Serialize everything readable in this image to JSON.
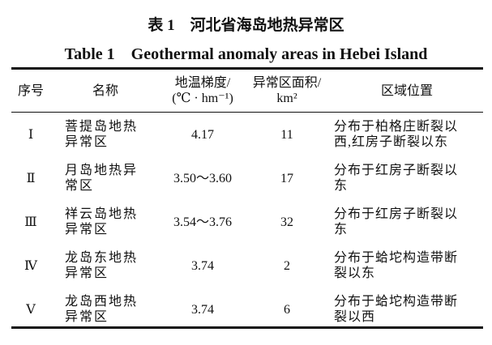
{
  "title_cn": "表 1　河北省海岛地热异常区",
  "title_en": "Table 1　Geothermal anomaly areas in Hebei Island",
  "headers": {
    "index": "序号",
    "name": "名称",
    "gradient_l1": "地温梯度/",
    "gradient_l2": "(℃ · hm⁻¹)",
    "area_l1": "异常区面积/",
    "area_l2": "km²",
    "location": "区域位置"
  },
  "rows": [
    {
      "index": "Ⅰ",
      "name_l1": "菩提岛地热",
      "name_l2": "异常区",
      "gradient": "4.17",
      "area": "11",
      "loc_l1": "分布于柏格庄断裂以",
      "loc_l2": "西,红房子断裂以东"
    },
    {
      "index": "Ⅱ",
      "name_l1": "月岛地热异",
      "name_l2": "常区",
      "gradient": "3.50～3.60",
      "area": "17",
      "loc_l1": "分布于红房子断裂以",
      "loc_l2": "东"
    },
    {
      "index": "Ⅲ",
      "name_l1": "祥云岛地热",
      "name_l2": "异常区",
      "gradient": "3.54～3.76",
      "area": "32",
      "loc_l1": "分布于红房子断裂以",
      "loc_l2": "东"
    },
    {
      "index": "Ⅳ",
      "name_l1": "龙岛东地热",
      "name_l2": "异常区",
      "gradient": "3.74",
      "area": "2",
      "loc_l1": "分布于蛤坨构造带断",
      "loc_l2": "裂以东"
    },
    {
      "index": "Ⅴ",
      "name_l1": "龙岛西地热",
      "name_l2": "异常区",
      "gradient": "3.74",
      "area": "6",
      "loc_l1": "分布于蛤坨构造带断",
      "loc_l2": "裂以西"
    }
  ]
}
